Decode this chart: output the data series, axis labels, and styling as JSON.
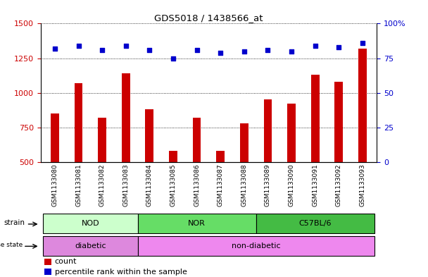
{
  "title": "GDS5018 / 1438566_at",
  "samples": [
    "GSM1133080",
    "GSM1133081",
    "GSM1133082",
    "GSM1133083",
    "GSM1133084",
    "GSM1133085",
    "GSM1133086",
    "GSM1133087",
    "GSM1133088",
    "GSM1133089",
    "GSM1133090",
    "GSM1133091",
    "GSM1133092",
    "GSM1133093"
  ],
  "counts": [
    850,
    1070,
    820,
    1140,
    880,
    580,
    820,
    580,
    780,
    950,
    920,
    1130,
    1080,
    1320
  ],
  "percentiles": [
    82,
    84,
    81,
    84,
    81,
    75,
    81,
    79,
    80,
    81,
    80,
    84,
    83,
    86
  ],
  "ylim_left": [
    500,
    1500
  ],
  "ylim_right": [
    0,
    100
  ],
  "yticks_left": [
    500,
    750,
    1000,
    1250,
    1500
  ],
  "yticks_right": [
    0,
    25,
    50,
    75,
    100
  ],
  "bar_color": "#cc0000",
  "dot_color": "#0000cc",
  "strain_groups": [
    {
      "label": "NOD",
      "start": 0,
      "end": 3,
      "color": "#ccffcc"
    },
    {
      "label": "NOR",
      "start": 4,
      "end": 8,
      "color": "#66dd66"
    },
    {
      "label": "C57BL/6",
      "start": 9,
      "end": 13,
      "color": "#44bb44"
    }
  ],
  "disease_rects": [
    {
      "label": "diabetic",
      "start": 0,
      "end": 3,
      "color": "#dd88dd"
    },
    {
      "label": "non-diabetic",
      "start": 4,
      "end": 13,
      "color": "#ee88ee"
    }
  ],
  "bg_color": "#cccccc"
}
